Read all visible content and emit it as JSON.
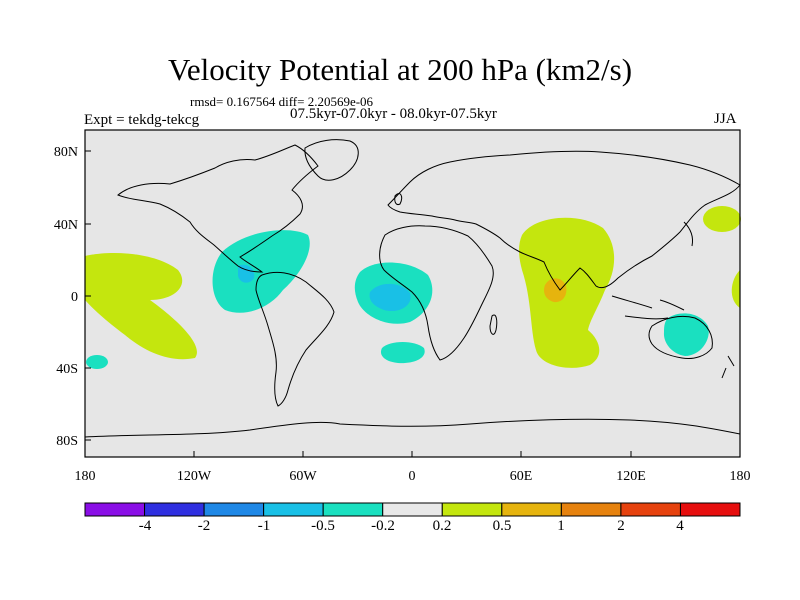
{
  "title": "Velocity Potential at 200 hPa (km2/s)",
  "stats": "rmsd= 0.167564 diff= 2.20569e-06",
  "experiment": "Expt = tekdg-tekcg",
  "period": "07.5kyr-07.0kyr - 08.0kyr-07.5kyr",
  "season": "JJA",
  "axes": {
    "x_labels": [
      "180",
      "120W",
      "60W",
      "0",
      "60E",
      "120E",
      "180"
    ],
    "y_labels": [
      "80N",
      "40N",
      "0",
      "40S",
      "80S"
    ]
  },
  "colorbar": {
    "labels": [
      "-4",
      "-2",
      "-1",
      "-0.5",
      "-0.2",
      "0.2",
      "0.5",
      "1",
      "2",
      "4"
    ],
    "colors": [
      "#8a0ee6",
      "#2f2fe0",
      "#1f88e6",
      "#19c0e6",
      "#1ae0c0",
      "#e8e8e8",
      "#c4e60e",
      "#e6b40e",
      "#e6820e",
      "#e6420e",
      "#e60e0e"
    ]
  },
  "map_colors": {
    "background": "#e6e6e6",
    "coast": "#000000"
  }
}
